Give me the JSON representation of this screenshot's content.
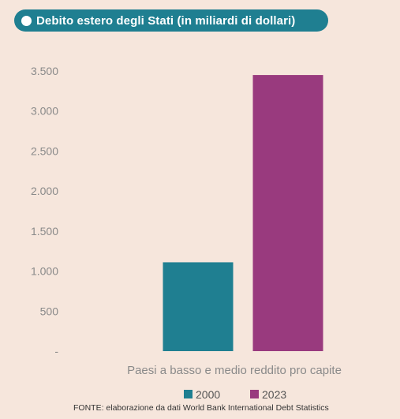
{
  "chart_data": {
    "type": "bar",
    "title": "Debito estero degli Stati (in miliardi di dollari)",
    "categories": [
      "Paesi a basso e medio reddito pro capite"
    ],
    "series": [
      {
        "name": "2000",
        "values": [
          1110
        ],
        "color": "#1f7f91"
      },
      {
        "name": "2023",
        "values": [
          3450
        ],
        "color": "#993a7e"
      }
    ],
    "ylim": [
      0,
      3500
    ],
    "yticks": [
      0,
      500,
      1000,
      1500,
      2000,
      2500,
      3000,
      3500
    ],
    "ytick_labels": [
      "-",
      "500",
      "1.000",
      "1.500",
      "2.000",
      "2.500",
      "3.000",
      "3.500"
    ],
    "xlabel": "",
    "ylabel": "",
    "grid": false,
    "legend_position": "bottom",
    "source": "FONTE: elaborazione da dati World Bank International Debt Statistics"
  }
}
